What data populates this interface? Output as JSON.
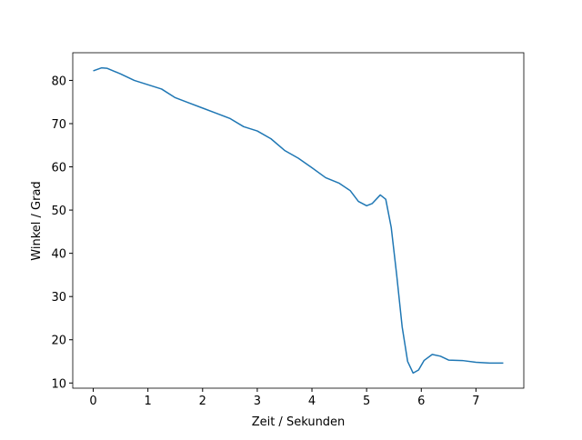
{
  "chart_data": {
    "type": "line",
    "xlabel": "Zeit / Sekunden",
    "ylabel": "Winkel / Grad",
    "x": [
      0,
      0.15,
      0.25,
      0.5,
      0.75,
      1.0,
      1.25,
      1.5,
      1.75,
      2.0,
      2.25,
      2.5,
      2.75,
      3.0,
      3.25,
      3.5,
      3.75,
      4.0,
      4.25,
      4.5,
      4.7,
      4.85,
      5.0,
      5.1,
      5.25,
      5.35,
      5.45,
      5.55,
      5.65,
      5.75,
      5.85,
      5.95,
      6.05,
      6.2,
      6.35,
      6.5,
      6.75,
      7.0,
      7.25,
      7.5
    ],
    "series": [
      {
        "color": "#1f77b4",
        "values": [
          82.2,
          82.9,
          82.8,
          81.5,
          80.0,
          79.0,
          78.0,
          76.0,
          74.8,
          73.6,
          72.4,
          71.2,
          69.3,
          68.3,
          66.5,
          63.8,
          62.0,
          59.8,
          57.5,
          56.2,
          54.5,
          52.0,
          51.0,
          51.5,
          53.5,
          52.5,
          46,
          35,
          23,
          15,
          12.3,
          13,
          15.2,
          16.6,
          16.2,
          15.3,
          15.2,
          14.8,
          14.6,
          14.6
        ]
      }
    ],
    "xlim": [
      -0.375,
      7.875
    ],
    "xticks": [
      0,
      1,
      2,
      3,
      4,
      5,
      6,
      7
    ],
    "ylim": [
      8.8,
      86.4
    ],
    "yticks": [
      10,
      20,
      30,
      40,
      50,
      60,
      70,
      80
    ]
  }
}
